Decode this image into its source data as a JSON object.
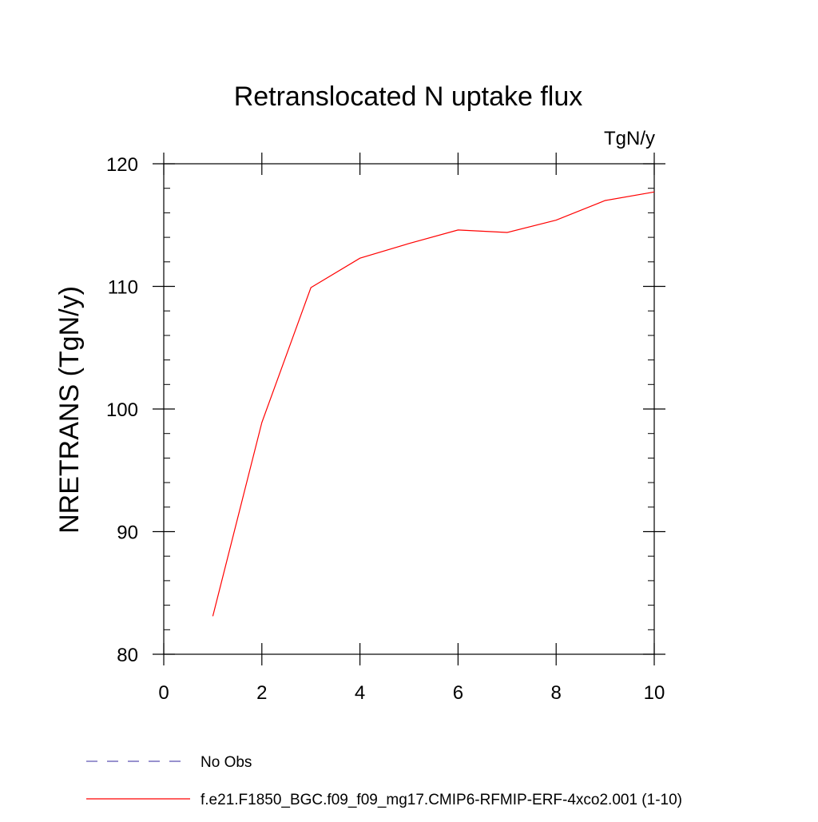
{
  "chart_data": {
    "type": "line",
    "title": "Retranslocated N uptake flux",
    "units_label": "TgN/y",
    "ylabel": "NRETRANS  (TgN/y)",
    "xlabel": "",
    "xlim": [
      0,
      10
    ],
    "ylim": [
      80,
      120
    ],
    "xticks": [
      0,
      2,
      4,
      6,
      8,
      10
    ],
    "yticks": [
      80,
      90,
      100,
      110,
      120
    ],
    "grid": false,
    "legend_position": "bottom",
    "series": [
      {
        "name": "f.e21.F1850_BGC.f09_f09_mg17.CMIP6-RFMIP-ERF-4xco2.001 (1-10)",
        "color": "#ff0000",
        "style": "solid",
        "x": [
          1,
          2,
          3,
          4,
          5,
          6,
          7,
          8,
          9,
          10
        ],
        "y": [
          83.1,
          98.9,
          109.9,
          112.3,
          113.5,
          114.6,
          114.4,
          115.4,
          117.0,
          117.7
        ]
      }
    ],
    "legend": [
      {
        "label": "No Obs",
        "color": "#5a4fb0",
        "style": "dashed"
      },
      {
        "label": "f.e21.F1850_BGC.f09_f09_mg17.CMIP6-RFMIP-ERF-4xco2.001 (1-10)",
        "color": "#ff0000",
        "style": "solid"
      }
    ]
  }
}
